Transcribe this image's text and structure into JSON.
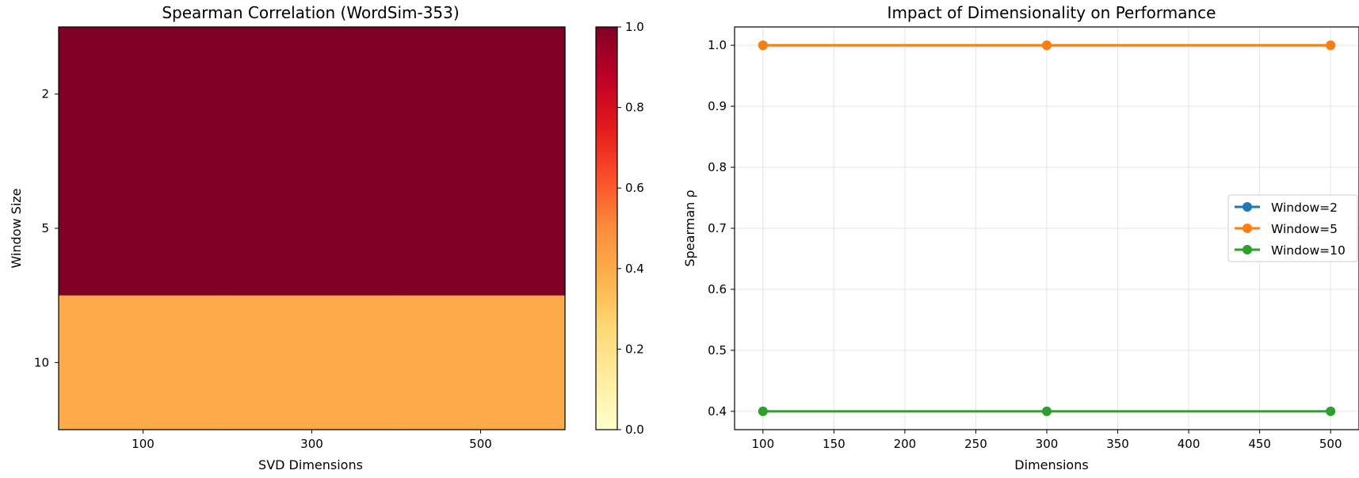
{
  "colors": {
    "heatmap_high": "#800026",
    "heatmap_low": "#fcaa4a",
    "colorbar_stops": [
      "#ffffcc",
      "#ffeda0",
      "#fed976",
      "#feb24c",
      "#fd8d3c",
      "#fc4e2a",
      "#e31a1c",
      "#bd0026",
      "#800026"
    ],
    "series": [
      "#1f77b4",
      "#ff7f0e",
      "#2ca02c"
    ],
    "grid": "#e5e5e5"
  },
  "chart_data": [
    {
      "type": "heatmap",
      "title": "Spearman Correlation (WordSim-353)",
      "xlabel": "SVD Dimensions",
      "ylabel": "Window Size",
      "x_categories": [
        "100",
        "300",
        "500"
      ],
      "y_categories": [
        "2",
        "5",
        "10"
      ],
      "values": [
        [
          1.0,
          1.0,
          1.0
        ],
        [
          1.0,
          1.0,
          1.0
        ],
        [
          0.4,
          0.4,
          0.4
        ]
      ],
      "colorbar": {
        "range": [
          0.0,
          1.0
        ],
        "ticks": [
          "0.0",
          "0.2",
          "0.4",
          "0.6",
          "0.8",
          "1.0"
        ]
      }
    },
    {
      "type": "line",
      "title": "Impact of Dimensionality on Performance",
      "xlabel": "Dimensions",
      "ylabel": "Spearman ρ",
      "x": [
        100,
        300,
        500
      ],
      "xlim": [
        80,
        520
      ],
      "ylim": [
        0.37,
        1.03
      ],
      "xticks": [
        "100",
        "150",
        "200",
        "250",
        "300",
        "350",
        "400",
        "450",
        "500"
      ],
      "yticks": [
        "0.4",
        "0.5",
        "0.6",
        "0.7",
        "0.8",
        "0.9",
        "1.0"
      ],
      "grid": true,
      "legend_position": "center-right",
      "series": [
        {
          "name": "Window=2",
          "values": [
            1.0,
            1.0,
            1.0
          ]
        },
        {
          "name": "Window=5",
          "values": [
            1.0,
            1.0,
            1.0
          ]
        },
        {
          "name": "Window=10",
          "values": [
            0.4,
            0.4,
            0.4
          ]
        }
      ]
    }
  ]
}
